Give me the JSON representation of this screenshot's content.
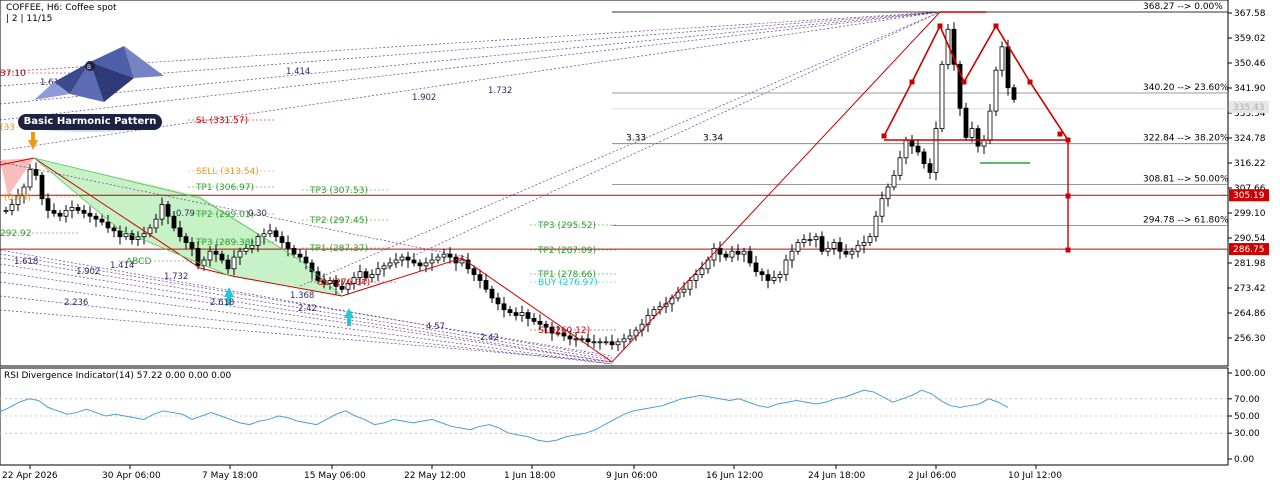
{
  "header": {
    "symbol_line": "COFFEE, H6:  Coffee spot",
    "sub_line": "| 2 | 11/15"
  },
  "logo": {
    "text": "Basic Harmonic Pattern"
  },
  "rsi": {
    "title": "RSI Divergence Indicator(14) 57.22 0.00 0.00 0.00"
  },
  "price_axis": {
    "ticks": [
      "367.58",
      "359.02",
      "350.46",
      "341.90",
      "333.34",
      "324.78",
      "316.22",
      "307.66",
      "299.10",
      "290.54",
      "281.98",
      "273.42",
      "264.86",
      "256.30"
    ],
    "current_price": "305.19",
    "support_price": "286.75",
    "faded_price": "335.43"
  },
  "rsi_axis": {
    "ticks": [
      "100.00",
      "70.00",
      "50.00",
      "30.00",
      "0.00"
    ]
  },
  "time_axis": {
    "ticks": [
      "22 Apr 2026",
      "30 Apr 06:00",
      "7 May 18:00",
      "15 May 06:00",
      "22 May 12:00",
      "1 Jun 18:00",
      "9 Jun 06:00",
      "16 Jun 12:00",
      "24 Jun 18:00",
      "2 Jul 06:00",
      "10 Jul 12:00"
    ]
  },
  "fib_levels": [
    {
      "label": "368.27 --> 0.00%"
    },
    {
      "label": "340.20 --> 23.60%"
    },
    {
      "label": "322.84 --> 38.20%"
    },
    {
      "label": "308.81 --> 50.00%"
    },
    {
      "label": "294.78 --> 61.80%"
    }
  ],
  "fib_labels_mid": [
    "3.33",
    "3.34"
  ],
  "annotations": {
    "sell": "SELL (313.54)",
    "sl_top": "SL (331.57)",
    "tp1_a": "TP1 (306.97)",
    "tp2_a": "TP2 (299.01)",
    "tp3_a": "TP3 (289.38)",
    "tp3_b": "TP3 (307.53)",
    "tp2_b": "TP2 (297.45)",
    "tp1_b": "TP1 (287.37)",
    "tp3_c": "TP3 (295.52)",
    "tp2_c": "TP2 (287.09)",
    "tp1_c": "TP1 (278.66)",
    "buy": "BUY (276.97)",
    "sl_bottom": "SL (260.12)",
    "sl_mid": "SL (276.04)",
    "abcd": "ABCD",
    "left_red": "37.10",
    "left_orange": "(33",
    "left_green": "292.92",
    "left_orange2": "(0.63)",
    "ratios": [
      "1.414",
      "1.902",
      "1.732",
      "1.618",
      "1.618",
      "1.902",
      "1.414",
      "1.732",
      "2.236",
      "2.618",
      "2.42",
      "4.57",
      "2.42",
      "1.368",
      "0.30",
      "0.79"
    ]
  },
  "colors": {
    "bull_candle": "#ffffff",
    "bear_candle": "#000000",
    "pattern_red": "#cc0000",
    "pattern_green": "#2e9e2e",
    "pattern_fill": "#bdf0bd",
    "fib_line": "#555555",
    "sell_orange": "#e89a1a",
    "buy_cyan": "#22c8d8",
    "rsi_line": "#4b9fd5",
    "dashed_purple": "#6a3d8c"
  }
}
